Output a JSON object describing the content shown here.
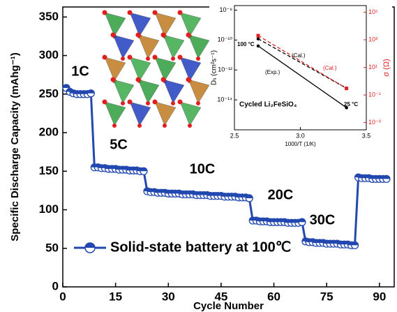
{
  "chart_data": [
    {
      "type": "line",
      "y_label": "Specific Discharge Capacity (mAhg⁻¹)",
      "x_label": "Cycle Number",
      "x": [
        1,
        2,
        3,
        4,
        5,
        6,
        7,
        8,
        9,
        10,
        11,
        12,
        13,
        14,
        15,
        16,
        17,
        18,
        19,
        20,
        21,
        22,
        23,
        24,
        25,
        26,
        27,
        28,
        29,
        30,
        31,
        32,
        33,
        34,
        35,
        36,
        37,
        38,
        39,
        40,
        41,
        42,
        43,
        44,
        45,
        46,
        47,
        48,
        49,
        50,
        51,
        52,
        53,
        54,
        55,
        56,
        57,
        58,
        59,
        60,
        61,
        62,
        63,
        64,
        65,
        66,
        67,
        68,
        69,
        70,
        71,
        72,
        73,
        74,
        75,
        76,
        77,
        78,
        79,
        80,
        81,
        82,
        83,
        84,
        85,
        86,
        87,
        88,
        89,
        90,
        91,
        92
      ],
      "series": [
        {
          "name": "Solid-state battery at 100℃",
          "color": "#2248b0",
          "values": [
            258,
            253,
            251,
            250,
            250,
            250,
            250,
            251,
            155,
            155,
            154,
            154,
            153,
            153,
            153,
            152,
            152,
            152,
            151,
            151,
            151,
            150,
            150,
            124,
            123,
            123,
            122,
            122,
            122,
            121,
            121,
            121,
            121,
            120,
            120,
            120,
            120,
            119,
            119,
            119,
            119,
            118,
            118,
            118,
            118,
            117,
            117,
            117,
            117,
            116,
            116,
            116,
            115,
            86,
            86,
            85,
            85,
            85,
            84,
            84,
            84,
            84,
            84,
            83,
            83,
            83,
            83,
            84,
            59,
            58,
            58,
            57,
            57,
            57,
            56,
            56,
            56,
            56,
            55,
            55,
            55,
            54,
            54,
            142,
            141,
            141,
            141,
            140,
            140,
            140,
            140,
            140
          ]
        }
      ],
      "annotations": [
        "1C",
        "5C",
        "10C",
        "20C",
        "30C",
        "5C"
      ],
      "xlim": [
        0,
        94.2
      ],
      "ylim": [
        0,
        363
      ],
      "xticks": [
        0,
        15,
        30,
        45,
        60,
        75,
        90
      ],
      "yticks": [
        0,
        50,
        100,
        150,
        200,
        250,
        300,
        350
      ]
    },
    {
      "type": "line",
      "y_label": "Dₗᵢ (cm²s⁻¹)",
      "y2_label": "σ (Ω)",
      "x_label": "1000/T (1/K)",
      "x": [
        2.68,
        3.35
      ],
      "series": [
        {
          "color": "#000000",
          "dash": false,
          "values": [
            4e-11,
            3e-15
          ]
        },
        {
          "color": "#000000",
          "dash": true,
          "values": [
            1.2e-10,
            6e-14
          ]
        },
        {
          "color": "#e02020",
          "dash": true,
          "axis": "y2",
          "values": [
            2000,
            0.3
          ]
        }
      ],
      "annotations": [
        "100 °C",
        "25 °C",
        "(Exp.)",
        "(Cal.)",
        "(Cal.)",
        "Cycled Li₂FeSiO₄"
      ],
      "xlim": [
        2.5,
        3.5
      ],
      "ylim": [
        1e-16,
        2e-08
      ],
      "y2lim": [
        0.0003,
        300000
      ],
      "ylog": true,
      "y2log": true,
      "xticks": [
        2.5,
        {
          "value": 3,
          "label": "3.0"
        },
        3.5
      ],
      "yticks": [
        {
          "value": 1e-08,
          "label": "10⁻⁸"
        },
        {
          "value": 1e-10,
          "label": "10⁻¹⁰"
        },
        {
          "value": 1e-12,
          "label": "10⁻¹²"
        },
        {
          "value": 1e-14,
          "label": "10⁻¹⁴"
        }
      ],
      "y2ticks": [
        {
          "value": 100000,
          "label": "10⁵"
        },
        {
          "value": 1000,
          "label": "10³"
        },
        {
          "value": 10,
          "label": "10¹"
        },
        {
          "value": 0.1,
          "label": "10⁻¹"
        },
        {
          "value": 0.001,
          "label": "10⁻³"
        }
      ]
    }
  ]
}
